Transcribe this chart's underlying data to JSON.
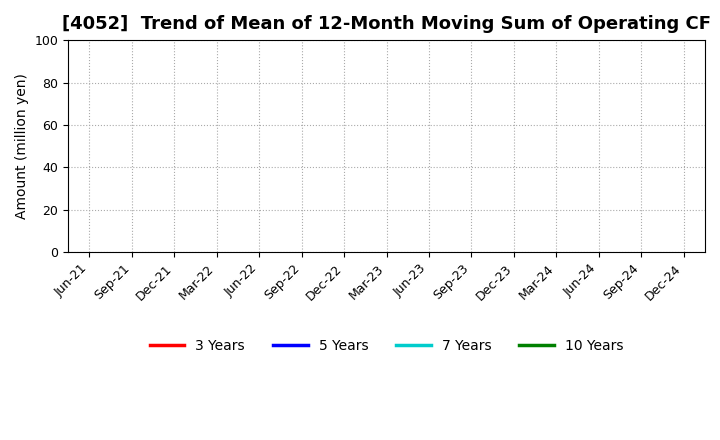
{
  "title": "[4052]  Trend of Mean of 12-Month Moving Sum of Operating CF",
  "ylabel": "Amount (million yen)",
  "ylim": [
    0,
    100
  ],
  "yticks": [
    0,
    20,
    40,
    60,
    80,
    100
  ],
  "x_labels": [
    "Jun-21",
    "Sep-21",
    "Dec-21",
    "Mar-22",
    "Jun-22",
    "Sep-22",
    "Dec-22",
    "Mar-23",
    "Jun-23",
    "Sep-23",
    "Dec-23",
    "Mar-24",
    "Jun-24",
    "Sep-24",
    "Dec-24"
  ],
  "legend_entries": [
    {
      "label": "3 Years",
      "color": "#ff0000"
    },
    {
      "label": "5 Years",
      "color": "#0000ff"
    },
    {
      "label": "7 Years",
      "color": "#00cccc"
    },
    {
      "label": "10 Years",
      "color": "#008000"
    }
  ],
  "background_color": "#ffffff",
  "grid_color": "#aaaaaa",
  "title_fontsize": 13,
  "axis_label_fontsize": 10,
  "tick_fontsize": 9,
  "legend_fontsize": 10
}
